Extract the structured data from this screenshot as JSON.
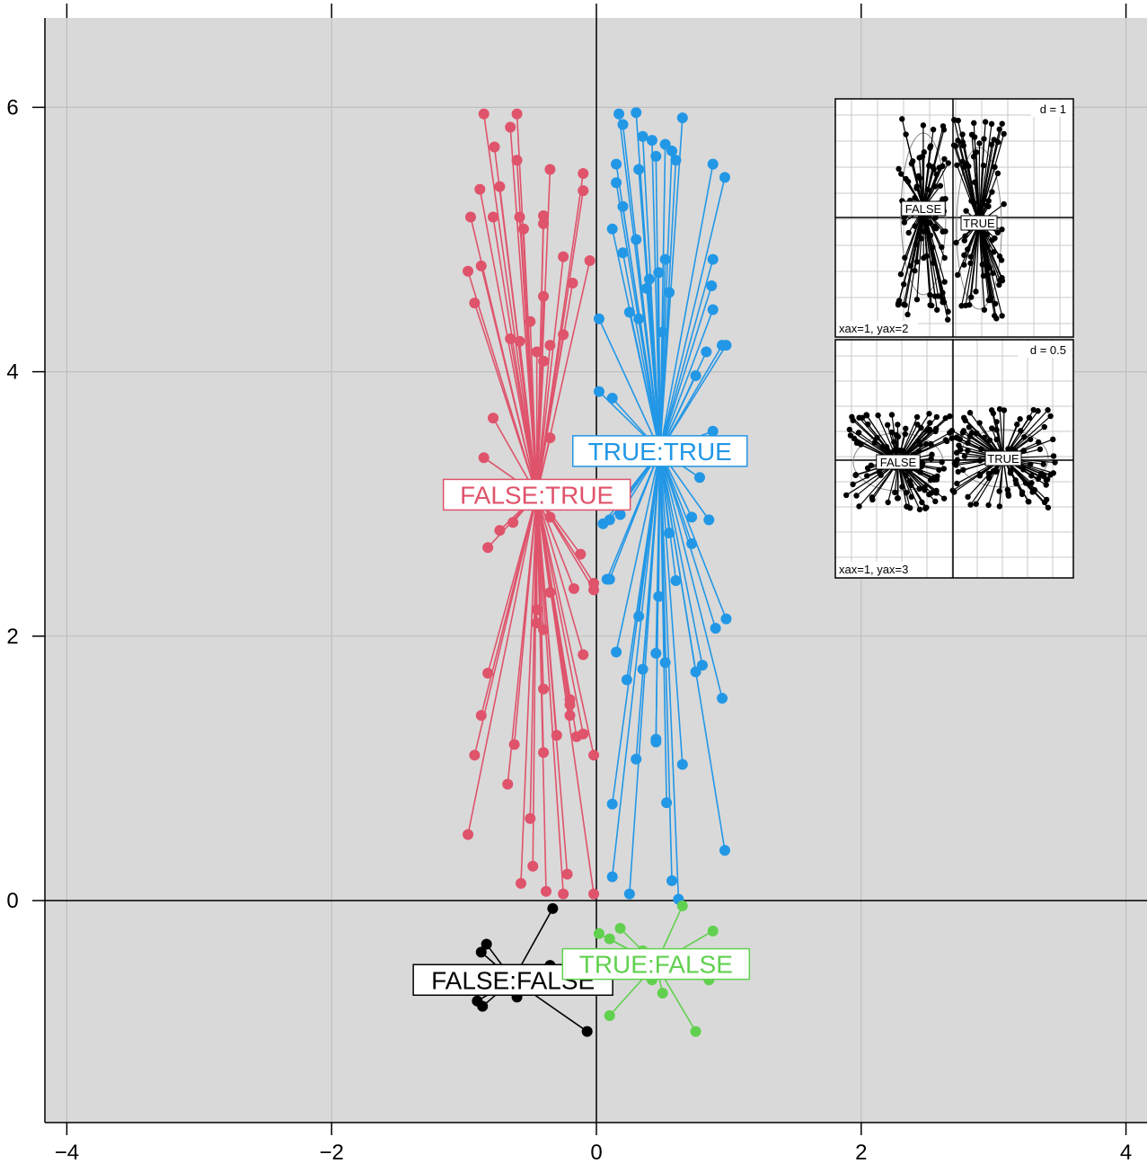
{
  "chart_data": {
    "type": "scatter",
    "title": "",
    "xlabel": "",
    "ylabel": "",
    "xlim": [
      -4.1,
      4.1
    ],
    "ylim": [
      -1.7,
      6.7
    ],
    "x_ticks": [
      -4,
      -2,
      0,
      2,
      4
    ],
    "y_ticks": [
      0,
      2,
      4,
      6
    ],
    "x_tick_labels": [
      "−4",
      "−2",
      "0",
      "2",
      "4"
    ],
    "y_tick_labels": [
      "0",
      "2",
      "4",
      "6"
    ],
    "grid": true,
    "legend": "none",
    "groups": [
      {
        "name": "FALSE:TRUE",
        "color": "#DF536B",
        "center": [
          -0.45,
          3.07
        ],
        "points": [
          [
            -0.85,
            5.95
          ],
          [
            -0.6,
            5.95
          ],
          [
            -0.65,
            5.85
          ],
          [
            -0.77,
            5.7
          ],
          [
            -0.6,
            5.6
          ],
          [
            -0.73,
            5.4
          ],
          [
            -0.88,
            5.38
          ],
          [
            -0.35,
            5.53
          ],
          [
            -0.1,
            5.5
          ],
          [
            -0.1,
            5.37
          ],
          [
            -0.58,
            5.17
          ],
          [
            -0.4,
            5.18
          ],
          [
            -0.4,
            5.12
          ],
          [
            -0.55,
            5.08
          ],
          [
            -0.78,
            5.17
          ],
          [
            -0.95,
            5.17
          ],
          [
            -0.25,
            4.87
          ],
          [
            -0.05,
            4.84
          ],
          [
            -0.87,
            4.8
          ],
          [
            -0.97,
            4.76
          ],
          [
            -0.18,
            4.67
          ],
          [
            -0.4,
            4.57
          ],
          [
            -0.92,
            4.52
          ],
          [
            -0.5,
            4.38
          ],
          [
            -0.25,
            4.28
          ],
          [
            -0.65,
            4.25
          ],
          [
            -0.58,
            4.23
          ],
          [
            -0.35,
            4.2
          ],
          [
            -0.45,
            4.15
          ],
          [
            -0.4,
            4.08
          ],
          [
            -0.78,
            3.65
          ],
          [
            -0.35,
            3.5
          ],
          [
            -0.85,
            3.35
          ],
          [
            -0.73,
            2.8
          ],
          [
            -0.82,
            2.67
          ],
          [
            -0.63,
            2.86
          ],
          [
            -0.35,
            2.9
          ],
          [
            -0.12,
            2.62
          ],
          [
            -0.02,
            2.4
          ],
          [
            -0.02,
            2.35
          ],
          [
            -0.17,
            2.36
          ],
          [
            -0.35,
            2.33
          ],
          [
            -0.45,
            2.2
          ],
          [
            -0.45,
            2.1
          ],
          [
            -0.4,
            2.05
          ],
          [
            -0.1,
            1.86
          ],
          [
            -0.82,
            1.72
          ],
          [
            -0.4,
            1.6
          ],
          [
            -0.2,
            1.52
          ],
          [
            -0.2,
            1.48
          ],
          [
            -0.87,
            1.4
          ],
          [
            -0.2,
            1.4
          ],
          [
            -0.1,
            1.26
          ],
          [
            -0.15,
            1.24
          ],
          [
            -0.3,
            1.25
          ],
          [
            -0.62,
            1.18
          ],
          [
            -0.4,
            1.12
          ],
          [
            -0.92,
            1.1
          ],
          [
            -0.02,
            1.1
          ],
          [
            -0.67,
            0.88
          ],
          [
            -0.5,
            0.62
          ],
          [
            -0.97,
            0.5
          ],
          [
            -0.48,
            0.26
          ],
          [
            -0.22,
            0.2
          ],
          [
            -0.57,
            0.13
          ],
          [
            -0.38,
            0.07
          ],
          [
            -0.25,
            0.05
          ],
          [
            -0.02,
            0.05
          ]
        ]
      },
      {
        "name": "TRUE:TRUE",
        "color": "#2297E6",
        "center": [
          0.48,
          3.4
        ],
        "points": [
          [
            0.17,
            5.95
          ],
          [
            0.3,
            5.96
          ],
          [
            0.65,
            5.92
          ],
          [
            0.2,
            5.87
          ],
          [
            0.35,
            5.78
          ],
          [
            0.42,
            5.75
          ],
          [
            0.52,
            5.72
          ],
          [
            0.57,
            5.67
          ],
          [
            0.45,
            5.63
          ],
          [
            0.6,
            5.6
          ],
          [
            0.15,
            5.57
          ],
          [
            0.88,
            5.57
          ],
          [
            0.32,
            5.53
          ],
          [
            0.15,
            5.43
          ],
          [
            0.97,
            5.47
          ],
          [
            0.2,
            5.25
          ],
          [
            0.12,
            5.08
          ],
          [
            0.3,
            5.0
          ],
          [
            0.2,
            4.9
          ],
          [
            0.52,
            4.85
          ],
          [
            0.88,
            4.85
          ],
          [
            0.47,
            4.75
          ],
          [
            0.4,
            4.7
          ],
          [
            0.87,
            4.65
          ],
          [
            0.38,
            4.63
          ],
          [
            0.55,
            4.6
          ],
          [
            0.25,
            4.45
          ],
          [
            0.88,
            4.47
          ],
          [
            0.32,
            4.4
          ],
          [
            0.02,
            4.4
          ],
          [
            0.5,
            4.3
          ],
          [
            0.83,
            4.15
          ],
          [
            0.95,
            4.2
          ],
          [
            0.98,
            4.2
          ],
          [
            0.75,
            3.97
          ],
          [
            0.02,
            3.85
          ],
          [
            0.12,
            3.8
          ],
          [
            0.88,
            3.55
          ],
          [
            0.78,
            3.2
          ],
          [
            0.05,
            2.85
          ],
          [
            0.1,
            2.88
          ],
          [
            0.18,
            2.92
          ],
          [
            0.2,
            3.0
          ],
          [
            0.72,
            2.9
          ],
          [
            0.85,
            2.88
          ],
          [
            0.55,
            2.78
          ],
          [
            0.72,
            2.7
          ],
          [
            0.1,
            2.43
          ],
          [
            0.08,
            2.43
          ],
          [
            0.6,
            2.42
          ],
          [
            0.47,
            2.3
          ],
          [
            0.32,
            2.15
          ],
          [
            0.98,
            2.13
          ],
          [
            0.9,
            2.06
          ],
          [
            0.15,
            1.88
          ],
          [
            0.45,
            1.87
          ],
          [
            0.52,
            1.8
          ],
          [
            0.35,
            1.75
          ],
          [
            0.8,
            1.78
          ],
          [
            0.75,
            1.73
          ],
          [
            0.23,
            1.67
          ],
          [
            0.95,
            1.53
          ],
          [
            0.45,
            1.22
          ],
          [
            0.45,
            1.2
          ],
          [
            0.3,
            1.07
          ],
          [
            0.65,
            1.03
          ],
          [
            0.12,
            0.73
          ],
          [
            0.53,
            0.74
          ],
          [
            0.97,
            0.38
          ],
          [
            0.12,
            0.18
          ],
          [
            0.57,
            0.15
          ],
          [
            0.25,
            0.05
          ],
          [
            0.62,
            0.01
          ]
        ]
      },
      {
        "name": "FALSE:FALSE",
        "color": "#000000",
        "center": [
          -0.63,
          -0.6
        ],
        "points": [
          [
            -0.33,
            -0.06
          ],
          [
            -0.83,
            -0.33
          ],
          [
            -0.87,
            -0.39
          ],
          [
            -0.35,
            -0.49
          ],
          [
            -0.9,
            -0.76
          ],
          [
            -0.86,
            -0.8
          ],
          [
            -0.6,
            -0.73
          ],
          [
            -0.07,
            -0.99
          ]
        ]
      },
      {
        "name": "TRUE:FALSE",
        "color": "#61D04F",
        "center": [
          0.45,
          -0.48
        ],
        "points": [
          [
            0.65,
            -0.04
          ],
          [
            0.18,
            -0.21
          ],
          [
            0.88,
            -0.23
          ],
          [
            0.02,
            -0.25
          ],
          [
            0.1,
            -0.29
          ],
          [
            0.35,
            -0.38
          ],
          [
            0.58,
            -0.46
          ],
          [
            0.42,
            -0.6
          ],
          [
            0.85,
            -0.6
          ],
          [
            0.5,
            -0.7
          ],
          [
            0.1,
            -0.87
          ],
          [
            0.75,
            -0.99
          ]
        ]
      }
    ],
    "insets": [
      {
        "d_label": "d = 1",
        "axes_label": "xax=1, yax=2",
        "group_labels": [
          "FALSE",
          "TRUE"
        ]
      },
      {
        "d_label": "d = 0.5",
        "axes_label": "xax=1, yax=3",
        "group_labels": [
          "FALSE",
          "TRUE"
        ]
      }
    ]
  }
}
